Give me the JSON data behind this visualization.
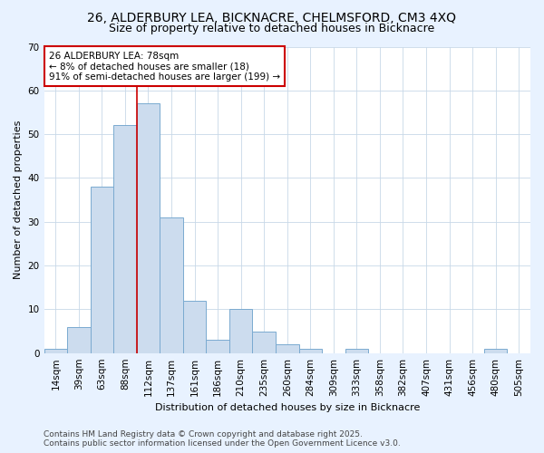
{
  "title": "26, ALDERBURY LEA, BICKNACRE, CHELMSFORD, CM3 4XQ",
  "subtitle": "Size of property relative to detached houses in Bicknacre",
  "xlabel": "Distribution of detached houses by size in Bicknacre",
  "ylabel": "Number of detached properties",
  "bar_color": "#ccdcee",
  "bar_edge_color": "#7aaad0",
  "bg_color": "#ffffff",
  "fig_bg_color": "#e8f2ff",
  "categories": [
    "14sqm",
    "39sqm",
    "63sqm",
    "88sqm",
    "112sqm",
    "137sqm",
    "161sqm",
    "186sqm",
    "210sqm",
    "235sqm",
    "260sqm",
    "284sqm",
    "309sqm",
    "333sqm",
    "358sqm",
    "382sqm",
    "407sqm",
    "431sqm",
    "456sqm",
    "480sqm",
    "505sqm"
  ],
  "values": [
    1,
    6,
    38,
    52,
    57,
    31,
    12,
    3,
    10,
    5,
    2,
    1,
    0,
    1,
    0,
    0,
    0,
    0,
    0,
    1,
    0
  ],
  "ylim": [
    0,
    70
  ],
  "yticks": [
    0,
    10,
    20,
    30,
    40,
    50,
    60,
    70
  ],
  "vline_position": 3.5,
  "annotation_text": "26 ALDERBURY LEA: 78sqm\n← 8% of detached houses are smaller (18)\n91% of semi-detached houses are larger (199) →",
  "annotation_box_color": "#ffffff",
  "annotation_box_edge": "#cc0000",
  "footer_text": "Contains HM Land Registry data © Crown copyright and database right 2025.\nContains public sector information licensed under the Open Government Licence v3.0.",
  "vline_color": "#cc0000",
  "grid_color": "#c8d8e8",
  "title_fontsize": 10,
  "subtitle_fontsize": 9,
  "axis_label_fontsize": 8,
  "tick_fontsize": 7.5,
  "annotation_fontsize": 7.5,
  "footer_fontsize": 6.5
}
